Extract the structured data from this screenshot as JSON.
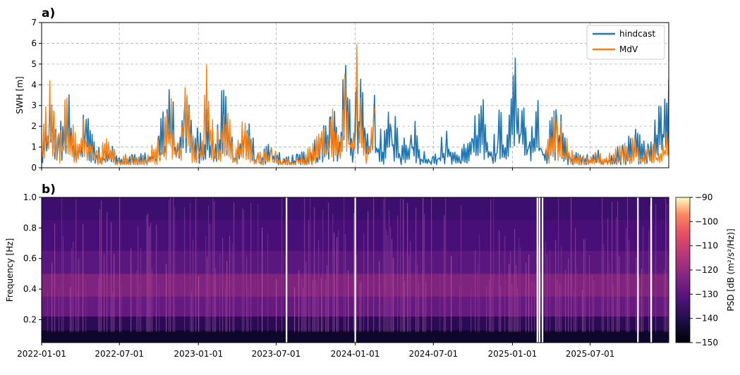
{
  "chart_data": [
    {
      "panel": "a)",
      "type": "line",
      "ylabel": "SWH [m]",
      "ylim": [
        0,
        7
      ],
      "xlim": [
        "2022-01-01",
        "2025-12-31"
      ],
      "grid": true,
      "legend_position": "top-right",
      "x_ticks": [
        "2022-01-01",
        "2022-07-01",
        "2023-01-01",
        "2023-07-01",
        "2024-01-01",
        "2024-07-01",
        "2025-01-01",
        "2025-07-01"
      ],
      "y_ticks": [
        "0",
        "1",
        "2",
        "3",
        "4",
        "5",
        "6",
        "7"
      ],
      "series": [
        {
          "name": "hindcast",
          "color": "#1f77b4",
          "x": [
            "2022-01-01",
            "2022-01-20",
            "2022-02-10",
            "2022-03-01",
            "2022-03-25",
            "2022-04-15",
            "2022-05-10",
            "2022-06-01",
            "2022-07-01",
            "2022-08-01",
            "2022-09-01",
            "2022-10-01",
            "2022-10-25",
            "2022-11-15",
            "2022-12-01",
            "2022-12-15",
            "2023-01-01",
            "2023-01-20",
            "2023-02-10",
            "2023-03-01",
            "2023-03-25",
            "2023-04-20",
            "2023-05-20",
            "2023-06-20",
            "2023-07-20",
            "2023-08-20",
            "2023-09-20",
            "2023-10-15",
            "2023-11-05",
            "2023-11-25",
            "2023-12-10",
            "2023-12-28",
            "2024-01-05",
            "2024-01-25",
            "2024-02-15",
            "2024-03-05",
            "2024-03-25",
            "2024-04-15",
            "2024-05-10",
            "2024-06-05",
            "2024-07-01",
            "2024-08-01",
            "2024-09-01",
            "2024-10-01",
            "2024-10-25",
            "2024-11-15",
            "2024-12-01",
            "2024-12-20",
            "2025-01-10",
            "2025-02-01",
            "2025-02-25",
            "2025-03-20",
            "2025-04-15",
            "2025-05-15",
            "2025-06-15",
            "2025-07-15",
            "2025-08-15",
            "2025-09-15",
            "2025-10-15",
            "2025-11-15",
            "2025-12-31"
          ],
          "values": [
            0.8,
            3.4,
            1.5,
            3.6,
            1.1,
            2.8,
            0.7,
            1.3,
            0.5,
            0.6,
            0.6,
            1.4,
            3.9,
            1.2,
            5.05,
            2.1,
            1.6,
            2.7,
            1.0,
            3.7,
            1.0,
            2.3,
            0.6,
            1.0,
            0.4,
            0.6,
            0.9,
            1.6,
            2.9,
            1.3,
            5.1,
            1.5,
            6.05,
            1.4,
            3.0,
            1.0,
            3.3,
            0.9,
            2.6,
            0.7,
            0.8,
            1.5,
            0.6,
            1.9,
            2.7,
            1.1,
            2.4,
            1.6,
            5.65,
            1.9,
            3.5,
            1.3,
            2.8,
            0.8,
            0.5,
            0.7,
            0.6,
            1.0,
            1.5,
            0.9,
            4.25
          ]
        },
        {
          "name": "MdV",
          "color": "#ff7f0e",
          "x": [
            "2022-01-01",
            "2022-01-20",
            "2022-02-10",
            "2022-03-01",
            "2022-03-25",
            "2022-04-15",
            "2022-05-10",
            "2022-06-01",
            "2022-07-01",
            "2022-08-01",
            "2022-09-01",
            "2022-10-01",
            "2022-10-25",
            "2022-11-15",
            "2022-12-01",
            "2022-12-15",
            "2023-01-01",
            "2023-01-20",
            "2023-02-10",
            "2023-03-01",
            "2023-03-25",
            "2023-04-20",
            "2023-05-20",
            "2023-06-20",
            "2023-07-20",
            "2023-08-20",
            "2023-09-20",
            "2023-10-15",
            "2023-11-05",
            "2023-11-25",
            "2023-12-10",
            "2023-12-28",
            "2024-01-05",
            "2024-01-25",
            "2024-02-15",
            "2025-03-20",
            "2025-04-15",
            "2025-05-15",
            "2025-06-15",
            "2025-07-15",
            "2025-08-15",
            "2025-09-15",
            "2025-10-15",
            "2025-11-15",
            "2025-12-31"
          ],
          "values": [
            0.8,
            4.8,
            1.4,
            3.2,
            1.0,
            2.6,
            0.7,
            1.2,
            0.5,
            0.6,
            0.6,
            1.3,
            3.4,
            1.1,
            4.5,
            2.0,
            1.5,
            4.9,
            1.0,
            3.3,
            1.0,
            2.1,
            0.6,
            0.9,
            0.4,
            0.6,
            0.9,
            1.5,
            2.7,
            1.2,
            4.7,
            1.4,
            5.5,
            1.3,
            2.9,
            1.2,
            2.6,
            0.8,
            0.5,
            0.7,
            0.6,
            1.0,
            1.4,
            0.9,
            1.5
          ]
        }
      ]
    },
    {
      "panel": "b)",
      "type": "heatmap",
      "ylabel": "Frequency [Hz]",
      "ylim": [
        0.05,
        1.0
      ],
      "xlim": [
        "2022-01-01",
        "2025-12-31"
      ],
      "x_ticks": [
        "2022-01-01",
        "2022-07-01",
        "2023-01-01",
        "2023-07-01",
        "2024-01-01",
        "2024-07-01",
        "2025-01-01",
        "2025-07-01"
      ],
      "y_ticks": [
        "0.2",
        "0.4",
        "0.6",
        "0.8",
        "1.0"
      ],
      "colorbar": {
        "label": "PSD [dB (m²/s²/Hz)]",
        "range": [
          -150,
          -90
        ],
        "ticks": [
          "−90",
          "−100",
          "−110",
          "−120",
          "−130",
          "−140",
          "−150"
        ],
        "colormap": "magma"
      },
      "gaps": [
        "2023-07-25",
        "2024-01-01",
        "2025-02-28",
        "2025-03-05",
        "2025-03-12",
        "2025-10-20",
        "2025-11-20"
      ]
    }
  ]
}
